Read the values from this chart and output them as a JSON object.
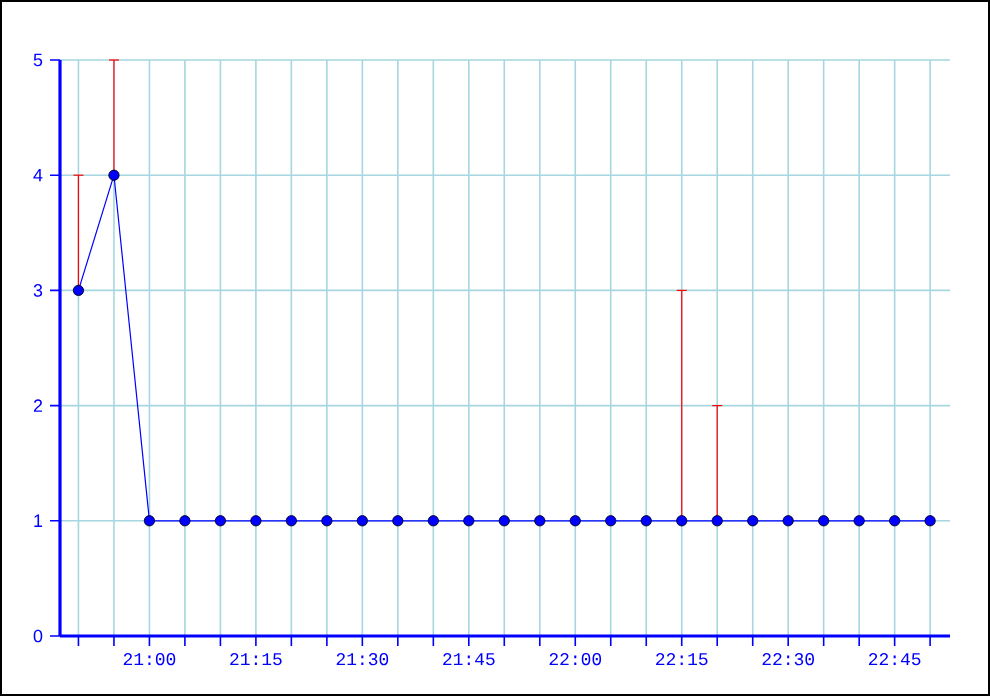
{
  "chart_data": {
    "type": "line",
    "x": [
      20.8333,
      20.9167,
      21.0,
      21.0833,
      21.1667,
      21.25,
      21.3333,
      21.4167,
      21.5,
      21.5833,
      21.6667,
      21.75,
      21.8333,
      21.9167,
      22.0,
      22.0833,
      22.1667,
      22.25,
      22.3333,
      22.4167,
      22.5,
      22.5833,
      22.6667,
      22.75,
      22.8333
    ],
    "series": [
      {
        "color": "#0000ff",
        "values": [
          3,
          4,
          1,
          1,
          1,
          1,
          1,
          1,
          1,
          1,
          1,
          1,
          1,
          1,
          1,
          1,
          1,
          1,
          1,
          1,
          1,
          1,
          1,
          1,
          1
        ],
        "errors": [
          [
            3,
            4
          ],
          [
            4,
            5
          ],
          null,
          null,
          null,
          null,
          null,
          null,
          null,
          null,
          null,
          null,
          null,
          null,
          null,
          null,
          null,
          [
            1,
            3
          ],
          [
            1,
            2
          ],
          null,
          null,
          null,
          null,
          null,
          null
        ]
      }
    ],
    "xlim": [
      20.79,
      22.88
    ],
    "xticks": [
      {
        "value": 20.8333,
        "label": null
      },
      {
        "value": 20.9167,
        "label": null
      },
      {
        "value": 21.0,
        "label": "21:00"
      },
      {
        "value": 21.0833,
        "label": null
      },
      {
        "value": 21.1667,
        "label": null
      },
      {
        "value": 21.25,
        "label": "21:15"
      },
      {
        "value": 21.3333,
        "label": null
      },
      {
        "value": 21.4167,
        "label": null
      },
      {
        "value": 21.5,
        "label": "21:30"
      },
      {
        "value": 21.5833,
        "label": null
      },
      {
        "value": 21.6667,
        "label": null
      },
      {
        "value": 21.75,
        "label": "21:45"
      },
      {
        "value": 21.8333,
        "label": null
      },
      {
        "value": 21.9167,
        "label": null
      },
      {
        "value": 22.0,
        "label": "22:00"
      },
      {
        "value": 22.0833,
        "label": null
      },
      {
        "value": 22.1667,
        "label": null
      },
      {
        "value": 22.25,
        "label": "22:15"
      },
      {
        "value": 22.3333,
        "label": null
      },
      {
        "value": 22.4167,
        "label": null
      },
      {
        "value": 22.5,
        "label": "22:30"
      },
      {
        "value": 22.5833,
        "label": null
      },
      {
        "value": 22.6667,
        "label": null
      },
      {
        "value": 22.75,
        "label": "22:45"
      },
      {
        "value": 22.8333,
        "label": null
      }
    ],
    "ylim": [
      0,
      5
    ],
    "yticks": [
      0,
      1,
      2,
      3,
      4,
      5
    ],
    "grid": true,
    "marker": "circle",
    "line_style": "solid"
  }
}
